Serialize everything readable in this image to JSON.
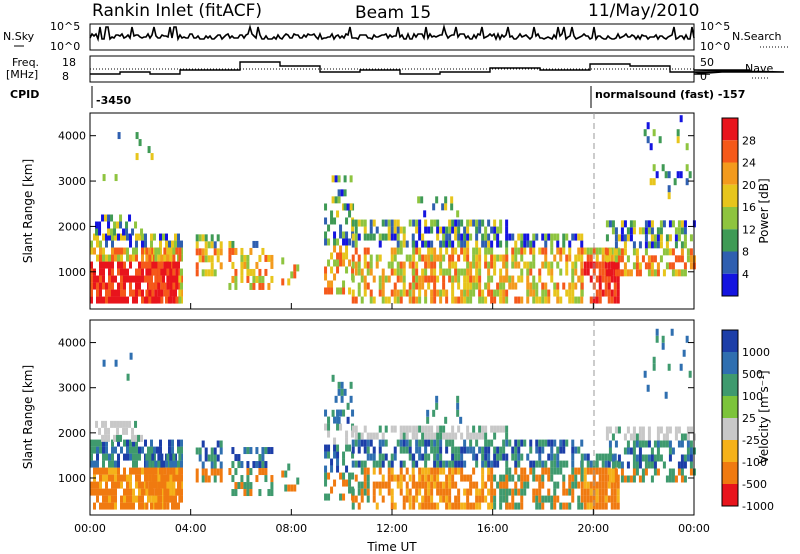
{
  "header": {
    "station": "Rankin Inlet (fitACF)",
    "beam": "Beam 15",
    "date": "11/May/2010"
  },
  "top_panels": {
    "nsky_label": "N.Sky",
    "nsky_ticks": [
      "10^5",
      "10^0"
    ],
    "nsearch_label": "N.Search",
    "nsearch_ticks": [
      "10^5",
      "10^0"
    ],
    "freq_label_1": "Freq.",
    "freq_label_2": "[MHz]",
    "freq_ticks": [
      "18",
      "8"
    ],
    "nave_label": "Nave",
    "nave_ticks": [
      "50",
      "0"
    ],
    "cpid_label": "CPID",
    "cpid_left": "-3450",
    "cpid_right": "normalsound (fast) -157"
  },
  "chart_data": [
    {
      "type": "heatmap",
      "name": "power",
      "ylabel": "Slant Range [km]",
      "yticks": [
        "1000",
        "2000",
        "3000",
        "4000"
      ],
      "ylim": [
        180,
        4500
      ],
      "colorbar_label": "Power [dB]",
      "colorbar_ticks": [
        "28",
        "24",
        "20",
        "16",
        "12",
        "8",
        "4"
      ],
      "colors": [
        "#e8141c",
        "#f5591a",
        "#f39a1d",
        "#e7c51c",
        "#8ec43f",
        "#3f9a55",
        "#2f5fb0",
        "#1414e0"
      ]
    },
    {
      "type": "heatmap",
      "name": "velocity",
      "ylabel": "Slant Range [km]",
      "yticks": [
        "1000",
        "2000",
        "3000",
        "4000"
      ],
      "ylim": [
        180,
        4500
      ],
      "colorbar_label": "Velocity [m s⁻¹]",
      "colorbar_ticks": [
        "1000",
        "500",
        "100",
        "25",
        "-25",
        "-100",
        "-500",
        "-1000"
      ],
      "colors": [
        "#1c3ea8",
        "#2f6fb0",
        "#3f9a6e",
        "#7cc43a",
        "#c8c8c8",
        "#f5b21a",
        "#f07a10",
        "#e8141c"
      ]
    }
  ],
  "x_axis": {
    "ticks": [
      "00:00",
      "04:00",
      "08:00",
      "12:00",
      "16:00",
      "20:00",
      "00:00"
    ],
    "label": "Time UT"
  }
}
